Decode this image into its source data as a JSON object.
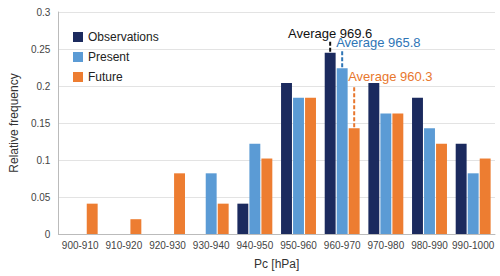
{
  "chart_data": {
    "type": "bar",
    "xlabel": "Pc [hPa]",
    "ylabel": "Relative frequency",
    "categories": [
      "900-910",
      "910-920",
      "920-930",
      "930-940",
      "940-950",
      "950-960",
      "960-970",
      "970-980",
      "980-990",
      "990-1000"
    ],
    "series": [
      {
        "name": "Observations",
        "color": "#1b2a5e",
        "values": [
          0,
          0,
          0,
          0,
          0.041,
          0.204,
          0.245,
          0.204,
          0.184,
          0.122
        ]
      },
      {
        "name": "Present",
        "color": "#5b9bd5",
        "values": [
          0,
          0,
          0,
          0.082,
          0.122,
          0.184,
          0.224,
          0.163,
          0.143,
          0.082
        ]
      },
      {
        "name": "Future",
        "color": "#ed7d31",
        "values": [
          0.041,
          0.02,
          0.082,
          0.041,
          0.102,
          0.184,
          0.143,
          0.163,
          0.122,
          0.102
        ]
      }
    ],
    "ylim": [
      0,
      0.3
    ],
    "yticks": [
      0,
      0.05,
      0.1,
      0.15,
      0.2,
      0.25,
      0.3
    ],
    "grid": true,
    "legend": "top-left",
    "annotations": [
      {
        "text": "Average 969.6",
        "series": "Observations",
        "category": "960-970",
        "color": "#111111"
      },
      {
        "text": "Average 965.8",
        "series": "Present",
        "category": "960-970",
        "color": "#2e75b6"
      },
      {
        "text": "Average 960.3",
        "series": "Future",
        "category": "960-970",
        "color": "#e8772e"
      }
    ]
  }
}
